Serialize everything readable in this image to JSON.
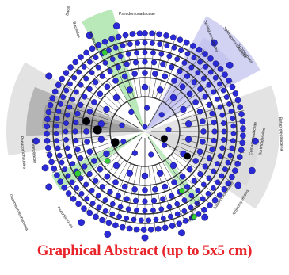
{
  "caption": {
    "text": "Graphical Abstract (up to 5x5 cm)",
    "color": "#e8232a"
  },
  "colors": {
    "node_fill": "#2a2ad6",
    "node_stroke": "#0b0b4a",
    "branch": "#333333",
    "outer_shade": "#d9d9d9",
    "dark_shade": "#8f8f8f",
    "lavender_shade": "#c3c3ef",
    "green_shade": "#7fd67f",
    "green_node": "#33cc33",
    "black_node": "#000000"
  },
  "labels": {
    "bacilli": "Bacilli",
    "bacillales": "Bacillales",
    "bacillaceae": "Bacillaceae",
    "pseudomonadaceae": "Pseudomonadaceae",
    "sphingomonadales": "Sphingomonadales",
    "sphingomonadaceae": "Sphingomonadaceae",
    "sphingopyxis": "Sphingopyxis",
    "betaproteobacteria": "Betaproteobacteria",
    "comamonadaceae": "Comamonadaceae",
    "burkholderiales": "Burkholderiales",
    "gammaproteobacteria": "Gammaproteobacteria",
    "acinetobacter": "Acinetobacter",
    "pseudomonadales": "Pseudomonadales",
    "pseudomonas": "Pseudomonas",
    "xanthomonadales": "Xanthomonadales",
    "actinomycetales": "Actinomycetales",
    "bacteroidetes": "Bacteroidetes"
  }
}
